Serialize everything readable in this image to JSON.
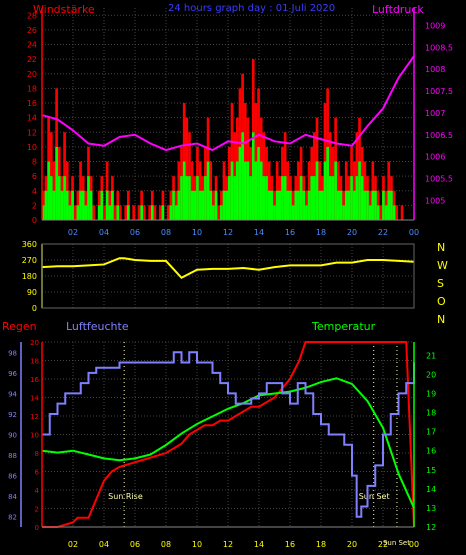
{
  "chart_data": [
    {
      "type": "bar+line",
      "title": "24 hours graph day : 01 Juli 2020",
      "left_axis_label": "Windstärke",
      "right_axis_label": "Luftdruck",
      "x_ticks": [
        "02",
        "04",
        "06",
        "08",
        "10",
        "12",
        "14",
        "16",
        "18",
        "20",
        "22",
        "00"
      ],
      "left_ticks": [
        0,
        2,
        4,
        6,
        8,
        10,
        12,
        14,
        16,
        18,
        20,
        22,
        24,
        26,
        28
      ],
      "right_ticks": [
        "1005",
        "1005.5",
        "1006",
        "1006.5",
        "1007",
        "1007.5",
        "1008",
        "1008.5",
        "1009"
      ],
      "left_ylim": [
        0,
        29
      ],
      "right_ylim": [
        1004.55,
        1009.4
      ],
      "grid": true,
      "series": [
        {
          "name": "Windstärke",
          "role": "gust",
          "color": "#ff0000",
          "type": "bar",
          "values": [
            4,
            6,
            14,
            12,
            8,
            18,
            10,
            6,
            12,
            8,
            4,
            6,
            2,
            4,
            8,
            6,
            4,
            10,
            6,
            2,
            0,
            4,
            6,
            2,
            8,
            4,
            6,
            2,
            4,
            2,
            0,
            2,
            4,
            0,
            2,
            0,
            2,
            4,
            2,
            0,
            2,
            4,
            2,
            0,
            2,
            4,
            0,
            2,
            4,
            6,
            4,
            8,
            10,
            16,
            14,
            12,
            8,
            6,
            10,
            8,
            6,
            10,
            14,
            8,
            4,
            6,
            2,
            4,
            8,
            6,
            10,
            16,
            12,
            14,
            18,
            20,
            16,
            14,
            10,
            22,
            16,
            18,
            14,
            12,
            10,
            8,
            6,
            4,
            8,
            6,
            10,
            12,
            8,
            6,
            4,
            6,
            8,
            10,
            6,
            4,
            8,
            10,
            12,
            14,
            8,
            6,
            16,
            18,
            12,
            10,
            14,
            8,
            6,
            4,
            8,
            6,
            10,
            8,
            12,
            14,
            10,
            8,
            6,
            4,
            8,
            6,
            4,
            2,
            6,
            4,
            8,
            6,
            4,
            2,
            0,
            2,
            0,
            0,
            0,
            0
          ]
        },
        {
          "name": "Windstärke",
          "role": "mean",
          "color": "#00ff00",
          "type": "bar",
          "values": [
            2,
            4,
            8,
            6,
            4,
            10,
            6,
            4,
            6,
            4,
            2,
            4,
            0,
            2,
            4,
            4,
            2,
            6,
            4,
            0,
            0,
            2,
            4,
            0,
            4,
            2,
            4,
            0,
            2,
            0,
            0,
            0,
            2,
            0,
            0,
            0,
            0,
            2,
            0,
            0,
            0,
            2,
            0,
            0,
            0,
            2,
            0,
            0,
            2,
            4,
            2,
            4,
            6,
            8,
            6,
            6,
            4,
            4,
            6,
            4,
            4,
            6,
            8,
            4,
            2,
            4,
            0,
            2,
            4,
            4,
            6,
            8,
            6,
            8,
            10,
            12,
            8,
            8,
            6,
            12,
            8,
            10,
            8,
            6,
            6,
            4,
            4,
            2,
            4,
            4,
            6,
            6,
            4,
            4,
            2,
            4,
            4,
            6,
            4,
            2,
            4,
            6,
            6,
            8,
            4,
            4,
            8,
            10,
            6,
            6,
            8,
            4,
            4,
            2,
            4,
            4,
            6,
            4,
            6,
            8,
            6,
            4,
            4,
            2,
            4,
            4,
            2,
            0,
            4,
            2,
            4,
            4,
            2,
            0,
            0,
            0,
            0,
            0,
            0,
            0
          ]
        },
        {
          "name": "Luftdruck",
          "color": "#ff00ff",
          "type": "line",
          "x": [
            0,
            1,
            2,
            3,
            4,
            5,
            6,
            7,
            8,
            9,
            10,
            11,
            12,
            13,
            14,
            15,
            16,
            17,
            18,
            19,
            20,
            21,
            22,
            23,
            24
          ],
          "values": [
            1006.95,
            1006.85,
            1006.6,
            1006.3,
            1006.25,
            1006.45,
            1006.5,
            1006.3,
            1006.15,
            1006.25,
            1006.3,
            1006.15,
            1006.35,
            1006.3,
            1006.5,
            1006.35,
            1006.3,
            1006.5,
            1006.4,
            1006.3,
            1006.25,
            1006.7,
            1007.1,
            1007.8,
            1008.3
          ]
        }
      ]
    },
    {
      "type": "line",
      "right_axis_labels": [
        "N",
        "W",
        "S",
        "O",
        "N"
      ],
      "left_ticks": [
        0,
        90,
        180,
        270,
        360
      ],
      "ylim": [
        0,
        360
      ],
      "x_ticks": [],
      "series": [
        {
          "name": "Windrichtung",
          "color": "#ffff00",
          "x": [
            0,
            1,
            2,
            3,
            4,
            5,
            5.3,
            6,
            7,
            8,
            9,
            10,
            11,
            12,
            13,
            14,
            15,
            16,
            17,
            18,
            19,
            20,
            21,
            22,
            23,
            24
          ],
          "values": [
            230,
            235,
            235,
            240,
            245,
            280,
            280,
            270,
            265,
            265,
            170,
            215,
            220,
            220,
            225,
            215,
            230,
            240,
            240,
            240,
            255,
            255,
            270,
            270,
            265,
            260
          ]
        }
      ]
    },
    {
      "type": "line",
      "left_label": "Regen",
      "second_left_label": "Luftfeuchte",
      "right_label": "Temperatur",
      "x_ticks": [
        "02",
        "04",
        "06",
        "08",
        "10",
        "12",
        "14",
        "16",
        "18",
        "20",
        "22",
        "00"
      ],
      "regen_ticks": [
        0,
        2,
        4,
        6,
        8,
        10,
        12,
        14,
        16,
        18,
        20
      ],
      "humidity_ticks": [
        82,
        84,
        86,
        88,
        90,
        92,
        94,
        96,
        98
      ],
      "temp_ticks": [
        12,
        13,
        14,
        15,
        16,
        17,
        18,
        19,
        20,
        21
      ],
      "annotations": [
        "Sun Rise",
        "Sun Set",
        "Sun Set"
      ],
      "annotation_hours": [
        5.3,
        21.4,
        22.9
      ],
      "regen_ylim": [
        0,
        20
      ],
      "humidity_ylim": [
        81,
        99
      ],
      "temp_ylim": [
        12,
        21.7
      ],
      "series": [
        {
          "name": "Luftfeuchte",
          "color": "#8080ff",
          "x": [
            0,
            0.5,
            1,
            1.5,
            2,
            2.5,
            3,
            3.5,
            4,
            5,
            6,
            8,
            8.5,
            9,
            9.5,
            10,
            10.5,
            11,
            11.5,
            12,
            12.5,
            13,
            13.5,
            14,
            14.5,
            15,
            15.5,
            16,
            16.5,
            17,
            17.5,
            18,
            18.5,
            19,
            19.5,
            20,
            20.3,
            20.6,
            21,
            21.5,
            22,
            22.5,
            23,
            23.5,
            24
          ],
          "values": [
            90,
            92,
            93,
            94,
            94,
            95,
            96,
            96.5,
            96.5,
            97,
            97,
            97,
            98,
            97,
            98,
            97,
            97,
            96,
            95,
            94,
            93,
            93,
            93.5,
            94,
            95,
            95,
            94,
            93,
            95,
            94,
            92,
            91,
            90,
            90,
            89,
            86,
            82,
            83,
            85,
            87,
            90,
            92,
            94,
            95,
            97
          ]
        },
        {
          "name": "Temperatur",
          "color": "#00ff00",
          "x": [
            0,
            1,
            2,
            3,
            4,
            5,
            6,
            7,
            8,
            9,
            10,
            11,
            12,
            13,
            14,
            15,
            16,
            17,
            18,
            19,
            20,
            21,
            22,
            23,
            24
          ],
          "values": [
            16.0,
            15.9,
            16.0,
            15.8,
            15.6,
            15.5,
            15.6,
            15.8,
            16.3,
            16.9,
            17.4,
            17.8,
            18.2,
            18.5,
            18.9,
            19.0,
            19.1,
            19.3,
            19.6,
            19.8,
            19.5,
            18.6,
            17.2,
            14.8,
            13.0
          ]
        },
        {
          "name": "Regen",
          "color": "#ff0000",
          "x": [
            0,
            1,
            2,
            2.3,
            3,
            3.5,
            4,
            4.5,
            5,
            6,
            7,
            8,
            9,
            9.5,
            10,
            10.5,
            11,
            11.5,
            12,
            12.5,
            13,
            13.5,
            14,
            14.5,
            15,
            15.5,
            16,
            16.3,
            16.6,
            17,
            17.5,
            18,
            19,
            20,
            21,
            22,
            23,
            23.5,
            24
          ],
          "values": [
            0,
            0,
            0.5,
            1,
            1,
            3,
            5,
            6,
            6.5,
            7,
            7.5,
            8,
            9,
            10,
            10.5,
            11,
            11,
            11.5,
            11.5,
            12,
            12.5,
            13,
            13,
            13.5,
            14,
            15,
            16,
            17,
            18,
            20,
            20,
            20,
            20,
            20,
            20,
            20,
            20,
            20,
            0
          ]
        }
      ]
    }
  ]
}
